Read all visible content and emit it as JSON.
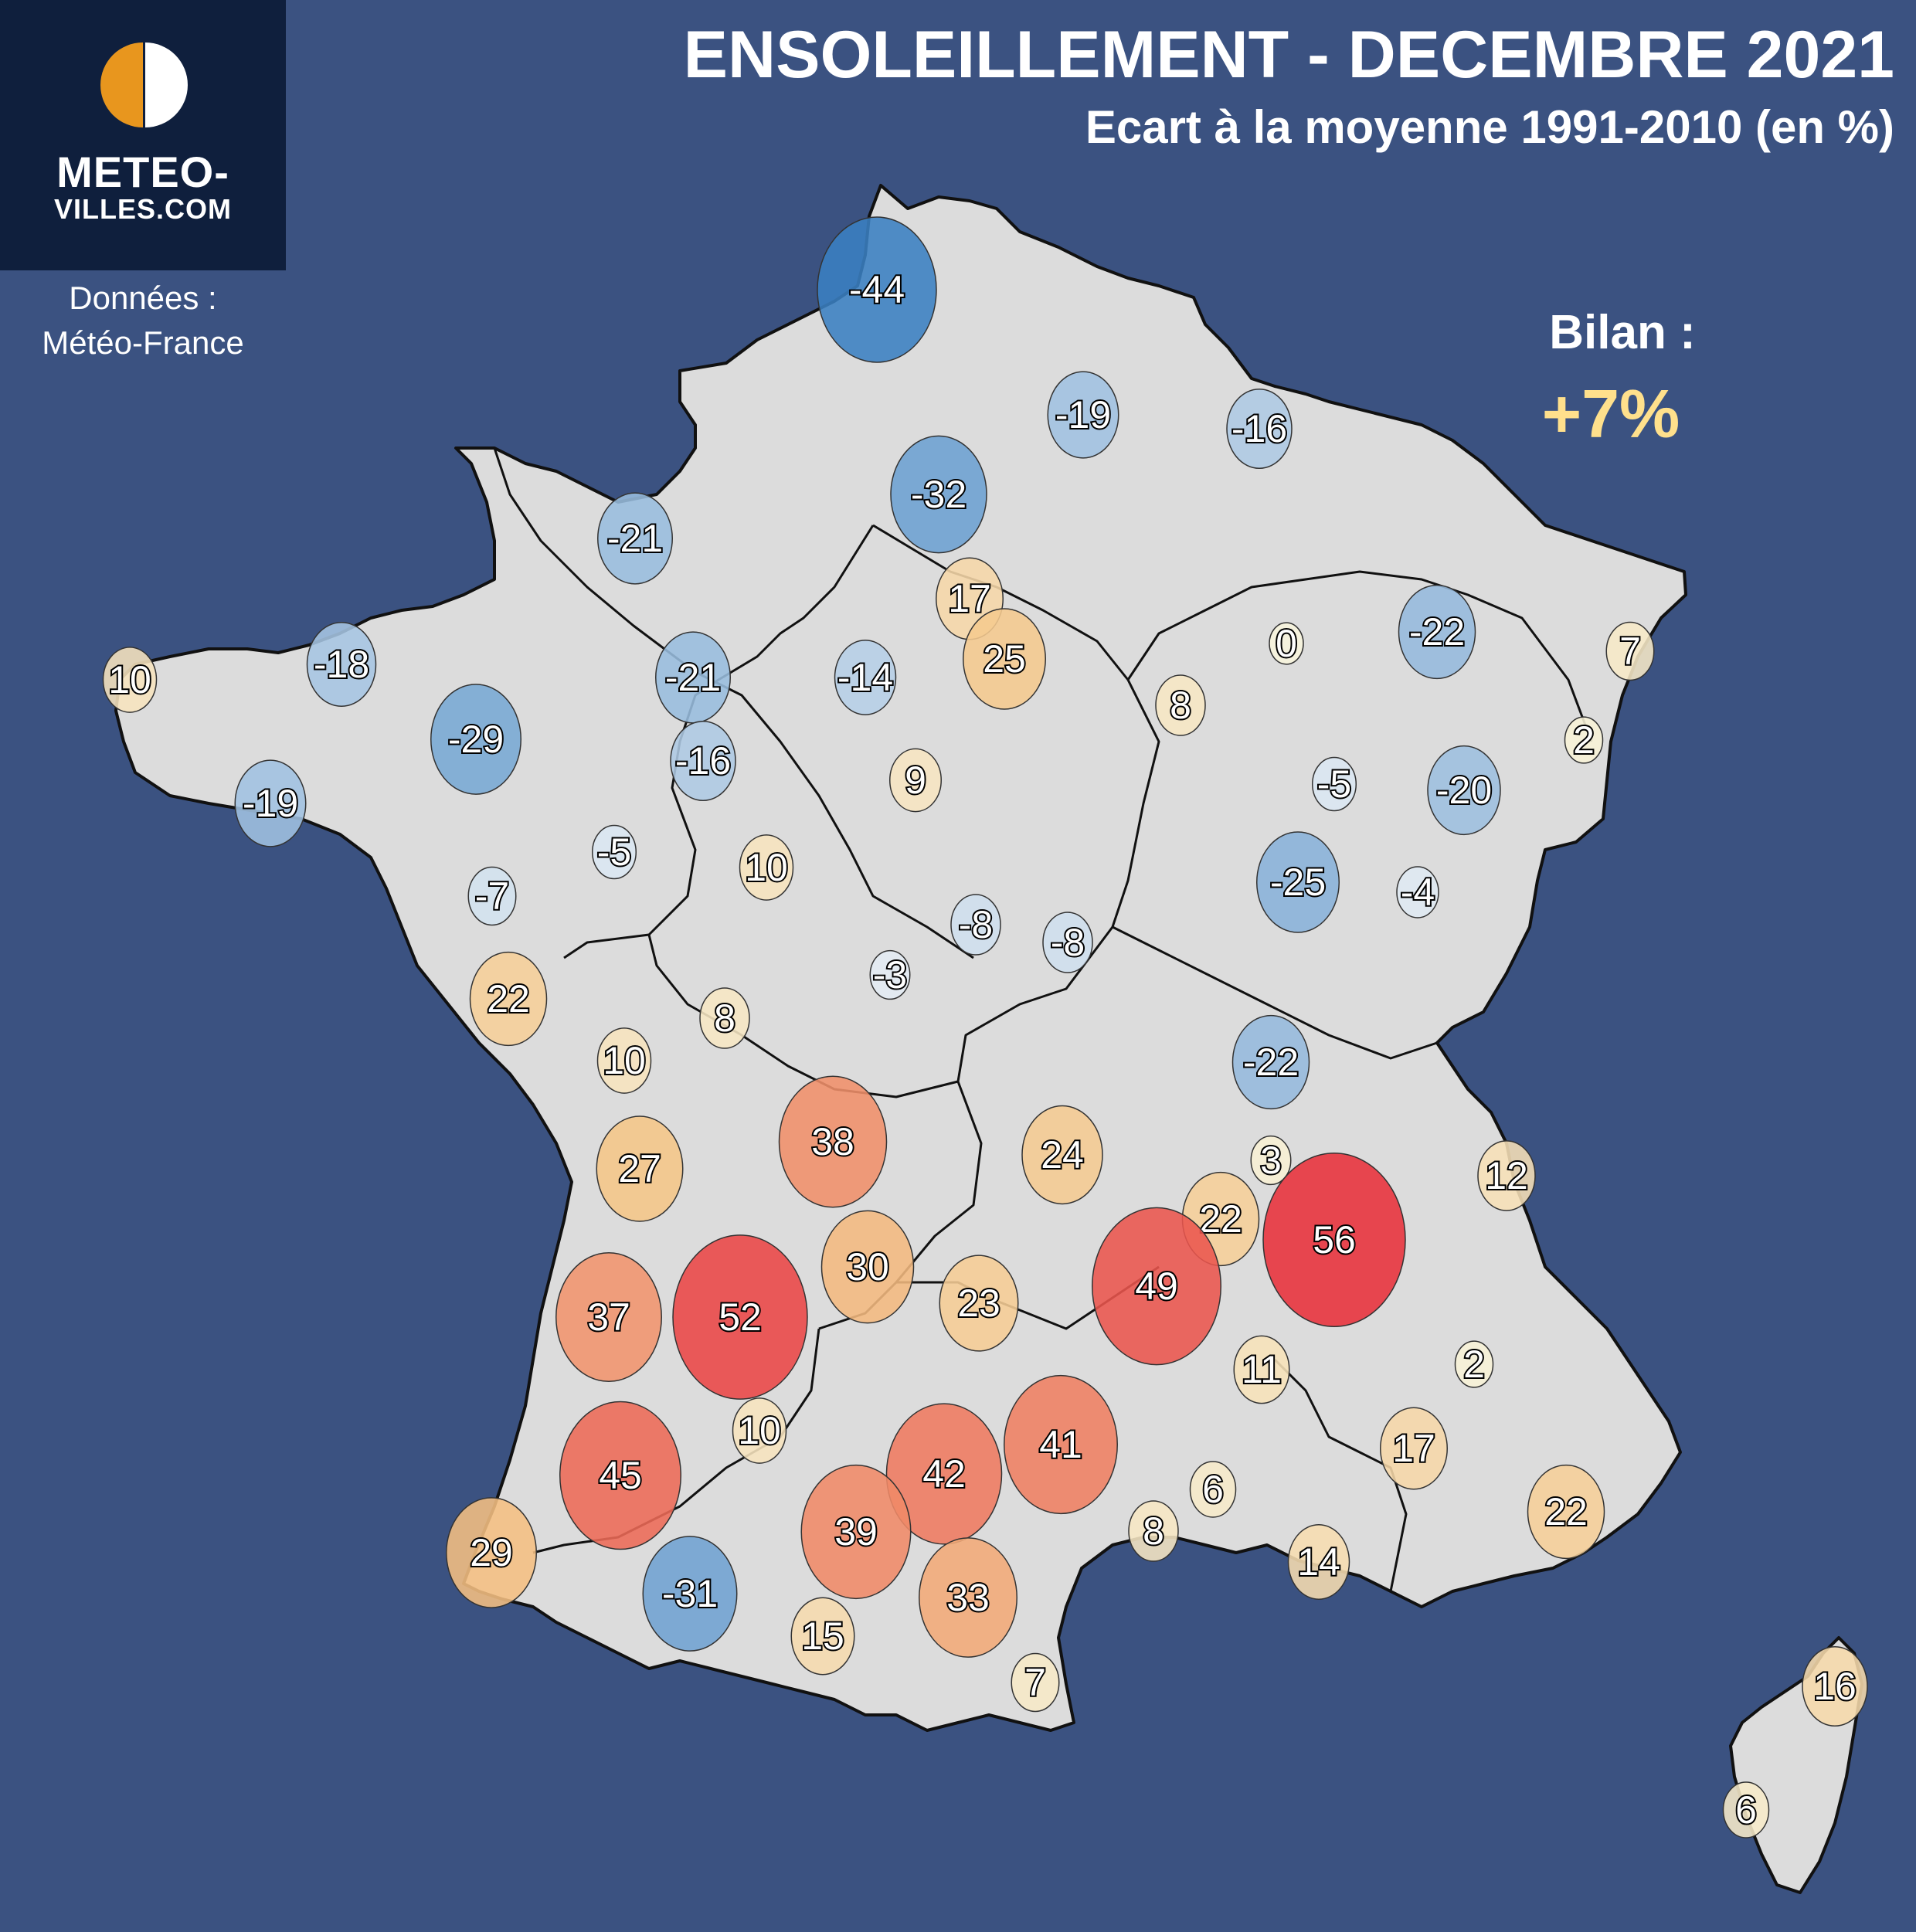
{
  "header": {
    "title": "ENSOLEILLEMENT - DECEMBRE 2021",
    "subtitle": "Ecart à la moyenne 1991-2010 (en %)"
  },
  "logo": {
    "line1": "METEO-",
    "line2": "VILLES.COM"
  },
  "source": {
    "line1": "Données :",
    "line2": "Météo-France"
  },
  "summary": {
    "label": "Bilan :",
    "value": "+7%"
  },
  "colors": {
    "background": "#3b5281",
    "land": "#dcdcdc",
    "border": "#111111",
    "positive_max": "#e8303a",
    "negative_max": "#3a80c2",
    "neutral": "#f5f2dc",
    "summary_value": "#ffe08c"
  },
  "stations": [
    {
      "value": "-44"
    },
    {
      "value": "-19"
    },
    {
      "value": "-16"
    },
    {
      "value": "-32"
    },
    {
      "value": "-21"
    },
    {
      "value": "17"
    },
    {
      "value": "25"
    },
    {
      "value": "-18"
    },
    {
      "value": "10"
    },
    {
      "value": "-21"
    },
    {
      "value": "-14"
    },
    {
      "value": "-29"
    },
    {
      "value": "-16"
    },
    {
      "value": "-19"
    },
    {
      "value": "0"
    },
    {
      "value": "-22"
    },
    {
      "value": "7"
    },
    {
      "value": "8"
    },
    {
      "value": "2"
    },
    {
      "value": "9"
    },
    {
      "value": "-5"
    },
    {
      "value": "-20"
    },
    {
      "value": "-5"
    },
    {
      "value": "10"
    },
    {
      "value": "-7"
    },
    {
      "value": "-25"
    },
    {
      "value": "-4"
    },
    {
      "value": "-8"
    },
    {
      "value": "-8"
    },
    {
      "value": "-3"
    },
    {
      "value": "22"
    },
    {
      "value": "8"
    },
    {
      "value": "10"
    },
    {
      "value": "-22"
    },
    {
      "value": "38"
    },
    {
      "value": "27"
    },
    {
      "value": "24"
    },
    {
      "value": "3"
    },
    {
      "value": "12"
    },
    {
      "value": "22"
    },
    {
      "value": "56"
    },
    {
      "value": "30"
    },
    {
      "value": "49"
    },
    {
      "value": "37"
    },
    {
      "value": "52"
    },
    {
      "value": "23"
    },
    {
      "value": "11"
    },
    {
      "value": "2"
    },
    {
      "value": "10"
    },
    {
      "value": "41"
    },
    {
      "value": "42"
    },
    {
      "value": "17"
    },
    {
      "value": "45"
    },
    {
      "value": "6"
    },
    {
      "value": "22"
    },
    {
      "value": "39"
    },
    {
      "value": "8"
    },
    {
      "value": "29"
    },
    {
      "value": "14"
    },
    {
      "value": "-31"
    },
    {
      "value": "33"
    },
    {
      "value": "15"
    },
    {
      "value": "7"
    },
    {
      "value": "16"
    },
    {
      "value": "6"
    }
  ]
}
